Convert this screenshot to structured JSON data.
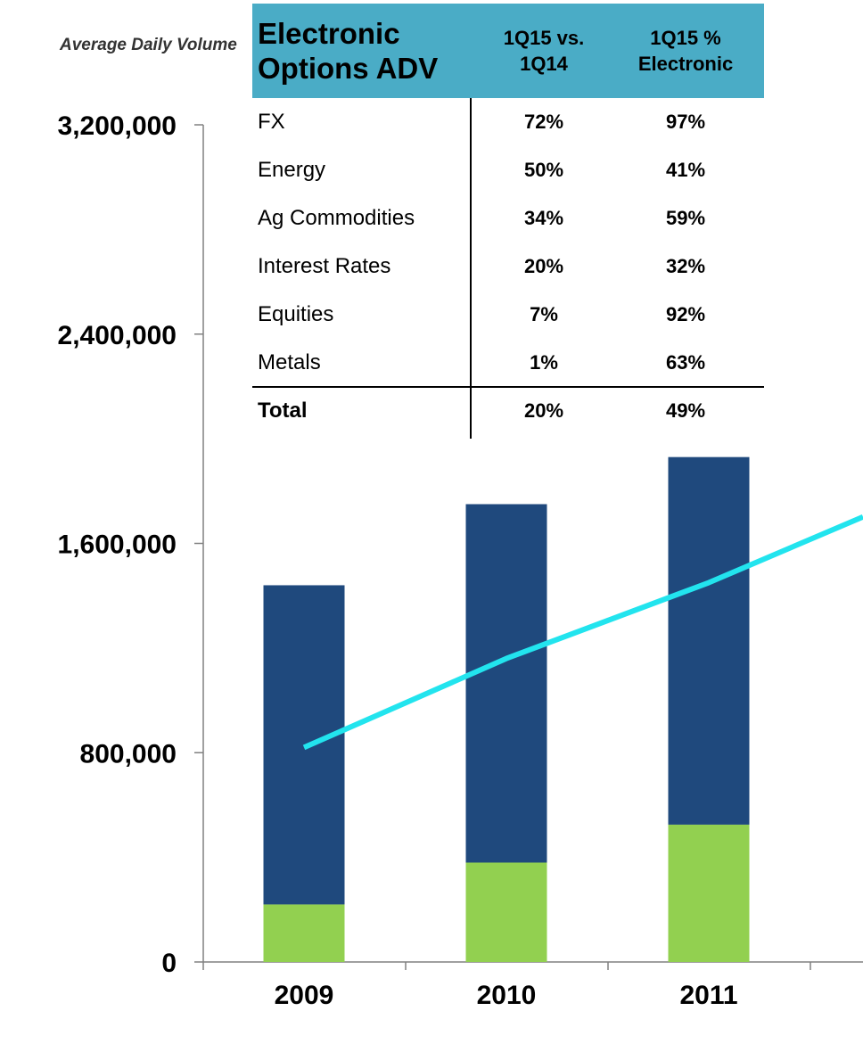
{
  "chart_data": {
    "type": "bar",
    "ylabel": "Average Daily Volume",
    "ylim": [
      0,
      3200000
    ],
    "yticks": [
      "0",
      "800,000",
      "1,600,000",
      "2,400,000",
      "3,200,000"
    ],
    "yticks_values": [
      0,
      800000,
      1600000,
      2400000,
      3200000
    ],
    "categories": [
      "2009",
      "2010",
      "2011"
    ],
    "series": [
      {
        "name": "",
        "kind": "stacked-bar-bottom",
        "color": "#92d050",
        "values": [
          220000,
          380000,
          525000
        ]
      },
      {
        "name": "",
        "kind": "stacked-bar-top",
        "color": "#1f497d",
        "values": [
          1220000,
          1370000,
          1405000
        ]
      },
      {
        "name": "",
        "kind": "line",
        "color": "#22e4ee",
        "values": [
          820000,
          1160000,
          1450000
        ]
      }
    ],
    "line_tail_value": 1780000,
    "legend": "none",
    "grid": false
  },
  "inset_table": {
    "header": {
      "col1": "Electronic\nOptions ADV",
      "col2": "1Q15 vs.\n1Q14",
      "col3": "1Q15 %\nElectronic"
    },
    "rows": [
      {
        "label": "FX",
        "change": "72%",
        "electronic": "97%"
      },
      {
        "label": "Energy",
        "change": "50%",
        "electronic": "41%"
      },
      {
        "label": "Ag Commodities",
        "change": "34%",
        "electronic": "59%"
      },
      {
        "label": "Interest Rates",
        "change": "20%",
        "electronic": "32%"
      },
      {
        "label": "Equities",
        "change": "7%",
        "electronic": "92%"
      },
      {
        "label": "Metals",
        "change": "1%",
        "electronic": "63%"
      }
    ],
    "total": {
      "label": "Total",
      "change": "20%",
      "electronic": "49%"
    }
  },
  "colors": {
    "table_header": "#4aacc6",
    "bar_top": "#1f497d",
    "bar_bottom": "#92d050",
    "line": "#22e4ee",
    "axis": "#808080"
  }
}
